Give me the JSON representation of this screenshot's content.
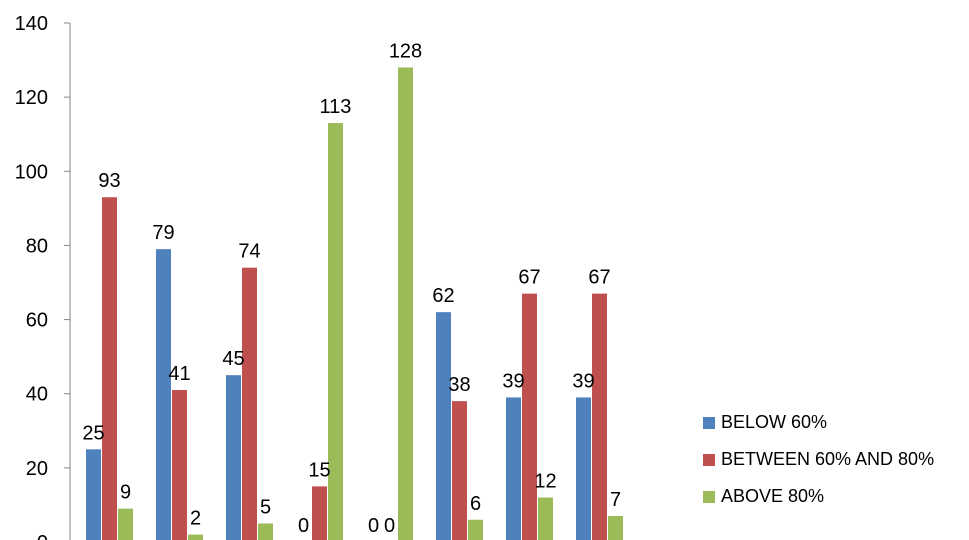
{
  "chart_data": {
    "type": "bar",
    "title": "",
    "xlabel": "",
    "ylabel": "",
    "ylim": [
      0,
      140
    ],
    "yticks": [
      0,
      20,
      40,
      60,
      80,
      100,
      120,
      140
    ],
    "grid": false,
    "legend_position": "right",
    "categories": [
      "",
      "",
      "",
      "",
      "",
      "",
      "",
      ""
    ],
    "series": [
      {
        "name": "BELOW 60%",
        "color": "#4F81BD",
        "values": [
          25,
          79,
          45,
          0,
          0,
          62,
          39,
          39
        ]
      },
      {
        "name": "BETWEEN 60% AND 80%",
        "color": "#C0504D",
        "values": [
          93,
          41,
          74,
          15,
          0,
          38,
          67,
          67
        ]
      },
      {
        "name": "ABOVE 80%",
        "color": "#9BBB59",
        "values": [
          9,
          2,
          5,
          113,
          128,
          6,
          12,
          7
        ]
      }
    ]
  }
}
